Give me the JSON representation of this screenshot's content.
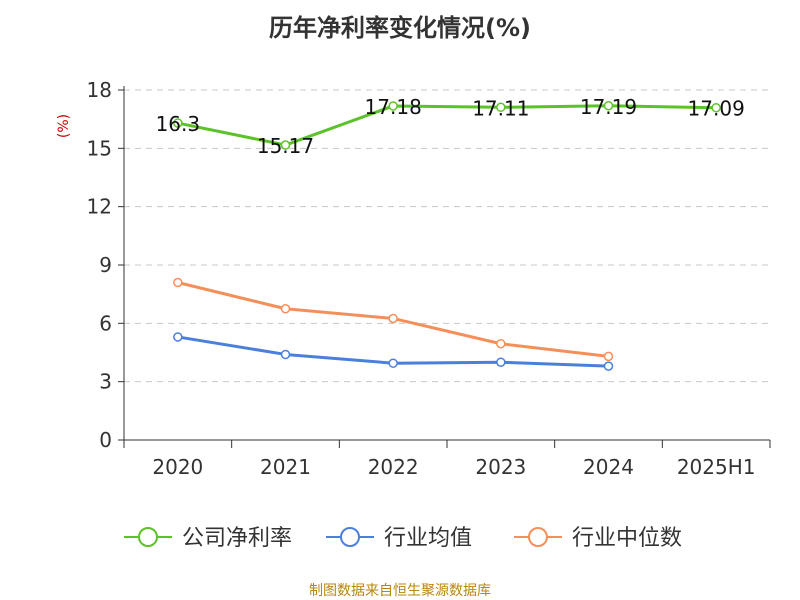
{
  "title": "历年净利率变化情况(%)",
  "source": "制图数据来自恒生聚源数据库",
  "colors": {
    "series": [
      "#5cc22a",
      "#4a7fdc",
      "#f58f5a"
    ],
    "y_unit": "#cc0000",
    "grid": "#c8c8c8",
    "axis": "#333333"
  },
  "chart_data": {
    "type": "line",
    "categories": [
      "2020",
      "2021",
      "2022",
      "2023",
      "2024",
      "2025H1"
    ],
    "y_unit": "(%)",
    "ylim": [
      0,
      18
    ],
    "yticks": [
      0,
      3,
      6,
      9,
      12,
      15,
      18
    ],
    "grid": true,
    "legend_position": "bottom",
    "series": [
      {
        "name": "公司净利率",
        "values": [
          16.3,
          15.17,
          17.18,
          17.11,
          17.19,
          17.09
        ],
        "labels": [
          "16.3",
          "15.17",
          "17.18",
          "17.11",
          "17.19",
          "17.09"
        ]
      },
      {
        "name": "行业均值",
        "values": [
          5.3,
          4.4,
          3.95,
          4.0,
          3.8,
          null
        ]
      },
      {
        "name": "行业中位数",
        "values": [
          8.1,
          6.75,
          6.25,
          4.95,
          4.3,
          null
        ]
      }
    ]
  }
}
